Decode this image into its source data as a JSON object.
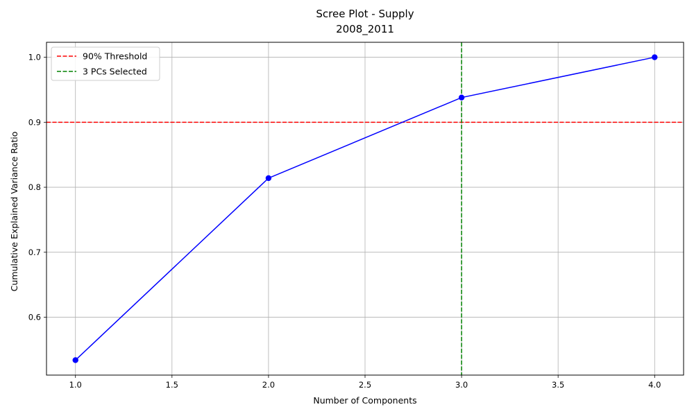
{
  "chart_data": {
    "type": "line",
    "title": "Scree Plot - Supply",
    "subtitle": "2008_2011",
    "xlabel": "Number of Components",
    "ylabel": "Cumulative Explained Variance Ratio",
    "xlim": [
      0.85,
      4.15
    ],
    "ylim": [
      0.511,
      1.023
    ],
    "xticks": [
      1.0,
      1.5,
      2.0,
      2.5,
      3.0,
      3.5,
      4.0
    ],
    "xtick_labels": [
      "1.0",
      "1.5",
      "2.0",
      "2.5",
      "3.0",
      "3.5",
      "4.0"
    ],
    "yticks": [
      0.6,
      0.7,
      0.8,
      0.9,
      1.0
    ],
    "ytick_labels": [
      "0.6",
      "0.7",
      "0.8",
      "0.9",
      "1.0"
    ],
    "grid": true,
    "legend_position": "top-left",
    "series": [
      {
        "x": [
          1,
          2,
          3,
          4
        ],
        "values": [
          0.534,
          0.814,
          0.938,
          1.0
        ],
        "color": "#0000ff",
        "marker": "circle"
      }
    ],
    "reference_lines": [
      {
        "orientation": "horizontal",
        "value": 0.9,
        "name": "90% Threshold",
        "color": "#ff0000",
        "style": "dashed"
      },
      {
        "orientation": "vertical",
        "value": 3,
        "name": "3 PCs Selected",
        "color": "#008000",
        "style": "dashed"
      }
    ]
  }
}
